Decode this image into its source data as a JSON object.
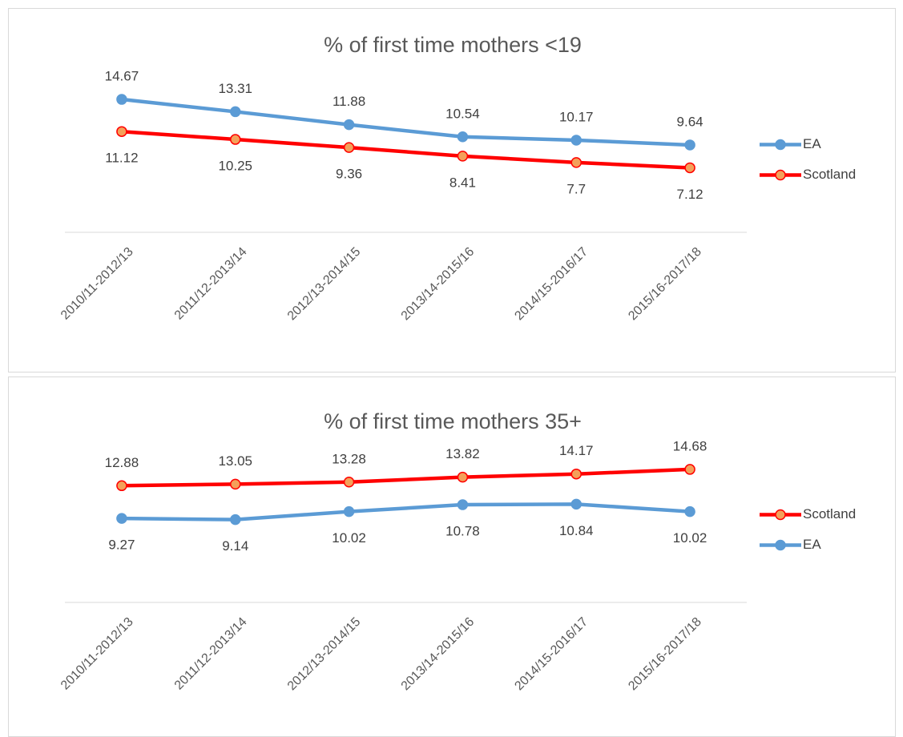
{
  "chart_data": [
    {
      "type": "line",
      "title": "% of first time mothers <19",
      "categories": [
        "2010/11-2012/13",
        "2011/12-2013/14",
        "2012/13-2014/15",
        "2013/14-2015/16",
        "2014/15-2016/17",
        "2015/16-2017/18"
      ],
      "series": [
        {
          "name": "EA",
          "color": "#5b9bd5",
          "marker_fill": "#5b9bd5",
          "values": [
            14.67,
            13.31,
            11.88,
            10.54,
            10.17,
            9.64
          ]
        },
        {
          "name": "Scotland",
          "color": "#ff0000",
          "marker_fill": "#f4a05a",
          "values": [
            11.12,
            10.25,
            9.36,
            8.41,
            7.7,
            7.12
          ]
        }
      ],
      "ylim": [
        0,
        16
      ],
      "legend": "right"
    },
    {
      "type": "line",
      "title": "% of first time mothers 35+",
      "categories": [
        "2010/11-2012/13",
        "2011/12-2013/14",
        "2012/13-2014/15",
        "2013/14-2015/16",
        "2014/15-2016/17",
        "2015/16-2017/18"
      ],
      "series": [
        {
          "name": "Scotland",
          "color": "#ff0000",
          "marker_fill": "#f4a05a",
          "values": [
            12.88,
            13.05,
            13.28,
            13.82,
            14.17,
            14.68
          ]
        },
        {
          "name": "EA",
          "color": "#5b9bd5",
          "marker_fill": "#5b9bd5",
          "values": [
            9.27,
            9.14,
            10.02,
            10.78,
            10.84,
            10.02
          ]
        }
      ],
      "ylim": [
        0,
        16
      ],
      "legend": "right"
    }
  ]
}
